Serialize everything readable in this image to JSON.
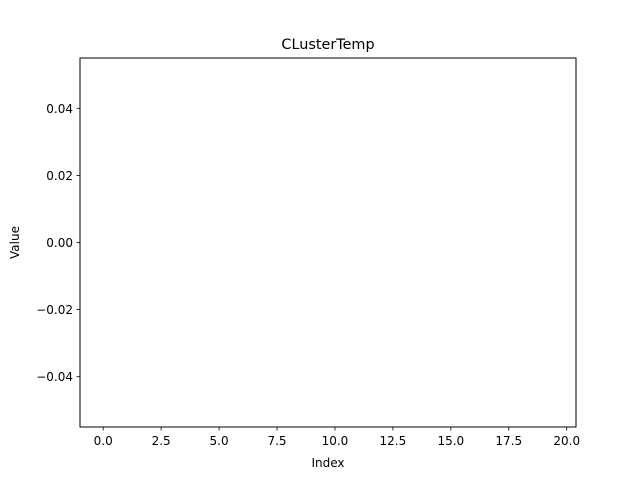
{
  "chart_data": {
    "type": "line",
    "title": "CLusterTemp",
    "xlabel": "Index",
    "ylabel": "Value",
    "xlim": [
      -1,
      20.4
    ],
    "ylim": [
      -0.055,
      0.055
    ],
    "xticks": [
      0.0,
      2.5,
      5.0,
      7.5,
      10.0,
      12.5,
      15.0,
      17.5,
      20.0
    ],
    "xtick_labels": [
      "0.0",
      "2.5",
      "5.0",
      "7.5",
      "10.0",
      "12.5",
      "15.0",
      "17.5",
      "20.0"
    ],
    "yticks": [
      0.04,
      0.02,
      0.0,
      -0.02,
      -0.04
    ],
    "ytick_labels": [
      "0.04",
      "0.02",
      "0.00",
      "−0.02",
      "−0.04"
    ],
    "grid": false,
    "series": [],
    "colors": {
      "axes": "#000000",
      "background": "#ffffff"
    }
  }
}
